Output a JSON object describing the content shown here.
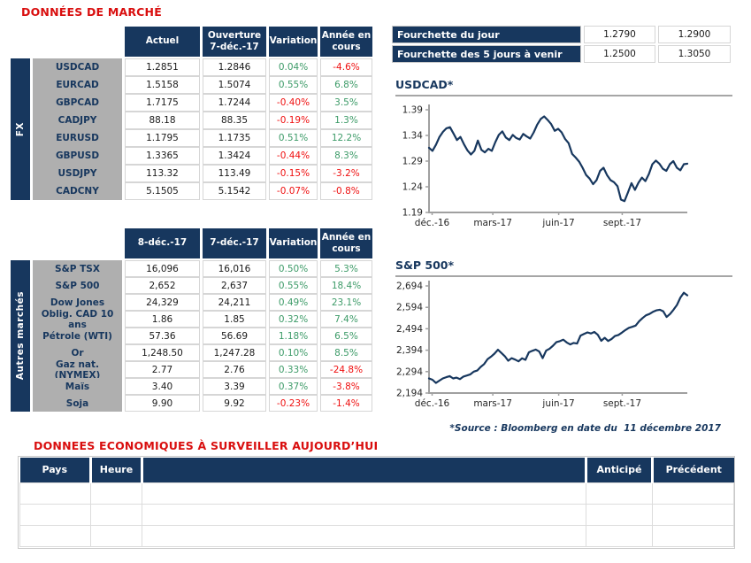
{
  "page": {
    "title": "DONNÉES DE MARCHÉ",
    "section2_title": "DONNEES ECONOMIQUES À SURVEILLER AUJOURD’HUI",
    "source_note": "*Source : Bloomberg en date du  11 décembre 2017"
  },
  "colors": {
    "navy": "#17375E",
    "title_red": "#D90E0E",
    "positive_green": "#3D9B68",
    "negative_red": "#EF1010",
    "label_gray": "#AFAFAF",
    "cell_border_gray": "#D6D6D6",
    "axis_gray": "#A0A0A0"
  },
  "fx_table": {
    "group_label": "FX",
    "headers": [
      "Actuel",
      "Ouverture\n7-déc.-17",
      "Variation",
      "Année en\ncours"
    ],
    "rows": [
      {
        "label": "USDCAD",
        "current": "1.2851",
        "open": "1.2846",
        "variation": "0.04%",
        "ytd": "-4.6%"
      },
      {
        "label": "EURCAD",
        "current": "1.5158",
        "open": "1.5074",
        "variation": "0.55%",
        "ytd": "6.8%"
      },
      {
        "label": "GBPCAD",
        "current": "1.7175",
        "open": "1.7244",
        "variation": "-0.40%",
        "ytd": "3.5%"
      },
      {
        "label": "CADJPY",
        "current": "88.18",
        "open": "88.35",
        "variation": "-0.19%",
        "ytd": "1.3%"
      },
      {
        "label": "EURUSD",
        "current": "1.1795",
        "open": "1.1735",
        "variation": "0.51%",
        "ytd": "12.2%"
      },
      {
        "label": "GBPUSD",
        "current": "1.3365",
        "open": "1.3424",
        "variation": "-0.44%",
        "ytd": "8.3%"
      },
      {
        "label": "USDJPY",
        "current": "113.32",
        "open": "113.49",
        "variation": "-0.15%",
        "ytd": "-3.2%"
      },
      {
        "label": "CADCNY",
        "current": "5.1505",
        "open": "5.1542",
        "variation": "-0.07%",
        "ytd": "-0.8%"
      }
    ]
  },
  "markets_table": {
    "group_label": "Autres marchés",
    "headers": [
      "8-déc.-17",
      "7-déc.-17",
      "Variation",
      "Année en\ncours"
    ],
    "rows": [
      {
        "label": "S&P TSX",
        "current": "16,096",
        "open": "16,016",
        "variation": "0.50%",
        "ytd": "5.3%"
      },
      {
        "label": "S&P 500",
        "current": "2,652",
        "open": "2,637",
        "variation": "0.55%",
        "ytd": "18.4%"
      },
      {
        "label": "Dow Jones",
        "current": "24,329",
        "open": "24,211",
        "variation": "0.49%",
        "ytd": "23.1%"
      },
      {
        "label": "Oblig. CAD 10 ans",
        "current": "1.86",
        "open": "1.85",
        "variation": "0.32%",
        "ytd": "7.4%"
      },
      {
        "label": "Pétrole (WTI)",
        "current": "57.36",
        "open": "56.69",
        "variation": "1.18%",
        "ytd": "6.5%"
      },
      {
        "label": "Or",
        "current": "1,248.50",
        "open": "1,247.28",
        "variation": "0.10%",
        "ytd": "8.5%"
      },
      {
        "label": "Gaz nat. (NYMEX)",
        "current": "2.77",
        "open": "2.76",
        "variation": "0.33%",
        "ytd": "-24.8%"
      },
      {
        "label": "Maïs",
        "current": "3.40",
        "open": "3.39",
        "variation": "0.37%",
        "ytd": "-3.8%"
      },
      {
        "label": "Soja",
        "current": "9.90",
        "open": "9.92",
        "variation": "-0.23%",
        "ytd": "-1.4%"
      }
    ]
  },
  "range_table": {
    "rows": [
      {
        "label": "Fourchette du jour",
        "low": "1.2790",
        "high": "1.2900"
      },
      {
        "label": "Fourchette des 5 jours à venir",
        "low": "1.2500",
        "high": "1.3050"
      }
    ]
  },
  "chart_data": [
    {
      "type": "line",
      "title": "USDCAD*",
      "y_min": 1.19,
      "y_max": 1.39,
      "y_ticks": [
        {
          "v": 1.19,
          "label": "1.19"
        },
        {
          "v": 1.24,
          "label": "1.24"
        },
        {
          "v": 1.29,
          "label": "1.29"
        },
        {
          "v": 1.34,
          "label": "1.34"
        },
        {
          "v": 1.39,
          "label": "1.39"
        }
      ],
      "x_tick_labels": [
        {
          "t": 0.012,
          "label": "déc.-16"
        },
        {
          "t": 0.247,
          "label": "mars-17"
        },
        {
          "t": 0.502,
          "label": "juin-17"
        },
        {
          "t": 0.748,
          "label": "sept.-17"
        }
      ],
      "plot_top": 13,
      "values": [
        1.316,
        1.31,
        1.322,
        1.337,
        1.347,
        1.354,
        1.356,
        1.344,
        1.331,
        1.337,
        1.323,
        1.311,
        1.303,
        1.31,
        1.33,
        1.312,
        1.307,
        1.314,
        1.31,
        1.327,
        1.341,
        1.348,
        1.336,
        1.331,
        1.341,
        1.335,
        1.332,
        1.343,
        1.338,
        1.334,
        1.346,
        1.361,
        1.372,
        1.377,
        1.37,
        1.362,
        1.349,
        1.353,
        1.346,
        1.333,
        1.325,
        1.304,
        1.297,
        1.289,
        1.277,
        1.263,
        1.256,
        1.245,
        1.253,
        1.271,
        1.277,
        1.263,
        1.253,
        1.249,
        1.241,
        1.215,
        1.212,
        1.229,
        1.247,
        1.234,
        1.248,
        1.258,
        1.251,
        1.265,
        1.284,
        1.291,
        1.285,
        1.275,
        1.271,
        1.284,
        1.29,
        1.277,
        1.272,
        1.284,
        1.285
      ],
      "line_color": "#17375E",
      "legend": false,
      "grid": false
    },
    {
      "type": "line",
      "title": "S&P 500*",
      "y_min": 2194,
      "y_max": 2694,
      "y_ticks": [
        {
          "v": 2194,
          "label": "2,194"
        },
        {
          "v": 2294,
          "label": "2,294"
        },
        {
          "v": 2394,
          "label": "2,394"
        },
        {
          "v": 2494,
          "label": "2,494"
        },
        {
          "v": 2594,
          "label": "2,594"
        },
        {
          "v": 2694,
          "label": "2,694"
        }
      ],
      "x_tick_labels": [
        {
          "t": 0.012,
          "label": "déc.-16"
        },
        {
          "t": 0.247,
          "label": "mars-17"
        },
        {
          "t": 0.502,
          "label": "juin-17"
        },
        {
          "t": 0.748,
          "label": "sept.-17"
        }
      ],
      "plot_top": 8,
      "values": [
        2262,
        2256,
        2241,
        2252,
        2262,
        2268,
        2273,
        2262,
        2266,
        2259,
        2271,
        2276,
        2281,
        2294,
        2299,
        2316,
        2329,
        2352,
        2364,
        2378,
        2396,
        2381,
        2366,
        2345,
        2357,
        2350,
        2342,
        2356,
        2349,
        2384,
        2391,
        2397,
        2388,
        2357,
        2392,
        2401,
        2415,
        2432,
        2436,
        2443,
        2430,
        2421,
        2428,
        2425,
        2462,
        2470,
        2477,
        2472,
        2479,
        2466,
        2438,
        2452,
        2437,
        2446,
        2460,
        2465,
        2476,
        2488,
        2498,
        2503,
        2509,
        2529,
        2544,
        2557,
        2563,
        2573,
        2580,
        2583,
        2576,
        2549,
        2563,
        2583,
        2605,
        2640,
        2662,
        2650
      ],
      "line_color": "#17375E",
      "legend": false,
      "grid": false
    }
  ],
  "econ_table": {
    "headers": [
      "Pays",
      "Heure",
      "",
      "Anticipé",
      "Précédent"
    ],
    "rows": [
      [
        "",
        "",
        "",
        "",
        ""
      ],
      [
        "",
        "",
        "",
        "",
        ""
      ],
      [
        "",
        "",
        "",
        "",
        ""
      ]
    ]
  }
}
